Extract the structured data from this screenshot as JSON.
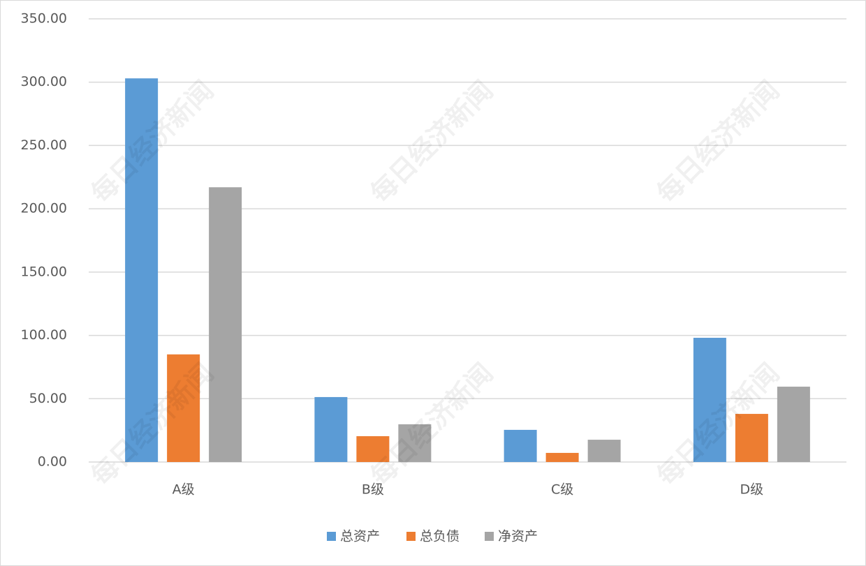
{
  "chart_data": {
    "type": "bar",
    "categories": [
      "A级",
      "B级",
      "C级",
      "D级"
    ],
    "series": [
      {
        "name": "总资产",
        "color": "#5b9bd5",
        "values": [
          303,
          51.3,
          25.4,
          98.1
        ]
      },
      {
        "name": "总负债",
        "color": "#ed7d31",
        "values": [
          85,
          20.4,
          7.2,
          38
        ]
      },
      {
        "name": "净资产",
        "color": "#a5a5a5",
        "values": [
          217,
          29.8,
          17.6,
          59.5
        ]
      }
    ],
    "ylim": [
      0,
      350
    ],
    "yticks": [
      {
        "value": 0,
        "label": "0.00"
      },
      {
        "value": 50,
        "label": "50.00"
      },
      {
        "value": 100,
        "label": "100.00"
      },
      {
        "value": 150,
        "label": "150.00"
      },
      {
        "value": 200,
        "label": "200.00"
      },
      {
        "value": 250,
        "label": "250.00"
      },
      {
        "value": 300,
        "label": "300.00"
      },
      {
        "value": 350,
        "label": "350.00"
      }
    ],
    "grid": true,
    "legend": "bottom",
    "watermark": "每日经济新闻"
  }
}
